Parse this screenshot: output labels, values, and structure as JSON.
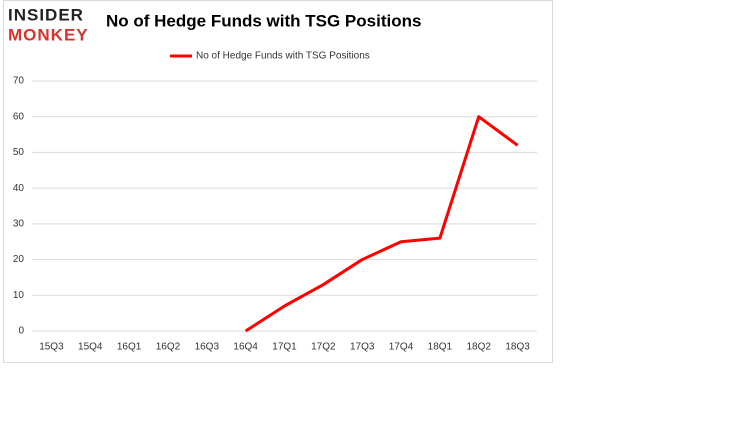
{
  "logo": {
    "line1": "INSIDER",
    "line2": "MONKEY"
  },
  "chart_data": {
    "type": "line",
    "title": "No of Hedge Funds with TSG Positions",
    "categories": [
      "15Q3",
      "15Q4",
      "16Q1",
      "16Q2",
      "16Q3",
      "16Q4",
      "17Q1",
      "17Q2",
      "17Q3",
      "17Q4",
      "18Q1",
      "18Q2",
      "18Q3"
    ],
    "series": [
      {
        "name": "No of Hedge Funds with TSG Positions",
        "color": "#ff0000",
        "values": [
          null,
          null,
          null,
          null,
          null,
          0,
          7,
          13,
          20,
          25,
          26,
          60,
          52
        ]
      }
    ],
    "ylim": [
      0,
      70
    ],
    "yticks": [
      0,
      10,
      20,
      30,
      40,
      50,
      60,
      70
    ],
    "grid": true,
    "legend": "top"
  }
}
